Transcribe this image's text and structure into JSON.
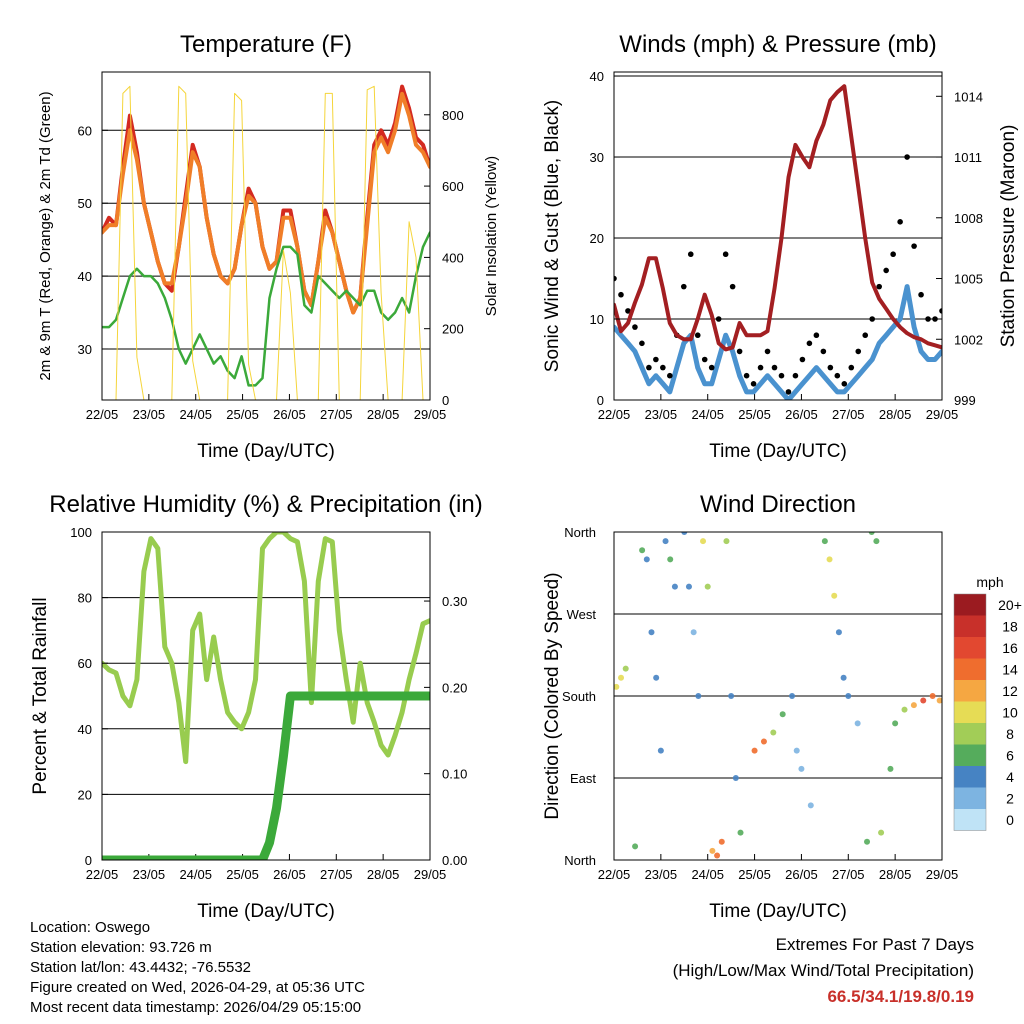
{
  "chart_data": [
    {
      "type": "line",
      "title": "Temperature (F)",
      "xlabel": "Time (Day/UTC)",
      "ylabel": "2m & 9m T (Red, Orange) & 2m Td (Green)",
      "y2label": "Solar Insolation (Yellow)",
      "x_ticks": [
        "22/05",
        "23/05",
        "24/05",
        "25/05",
        "26/05",
        "27/05",
        "28/05",
        "29/05"
      ],
      "ylim": [
        23,
        68
      ],
      "y_ticks": [
        30,
        40,
        50,
        60
      ],
      "y2lim": [
        0,
        920
      ],
      "y2_ticks": [
        0,
        200,
        400,
        600,
        800
      ],
      "series": [
        {
          "name": "2m T",
          "color": "#d42a20",
          "values": [
            46,
            48,
            47,
            55,
            62,
            57,
            50,
            46,
            42,
            39,
            38,
            44,
            51,
            58,
            55,
            48,
            43,
            40,
            39,
            41,
            47,
            52,
            50,
            44,
            41,
            42,
            49,
            49,
            44,
            38,
            36,
            42,
            49,
            46,
            42,
            38,
            35,
            37,
            48,
            58,
            60,
            58,
            61,
            66,
            63,
            59,
            58,
            55
          ]
        },
        {
          "name": "9m T",
          "color": "#f07e28",
          "values": [
            46,
            47,
            47,
            54,
            60,
            56,
            50,
            46,
            42,
            39,
            39,
            44,
            50,
            57,
            55,
            48,
            43,
            40,
            39,
            41,
            47,
            51,
            50,
            44,
            41,
            42,
            48,
            48,
            44,
            38,
            36,
            42,
            48,
            46,
            42,
            38,
            35,
            37,
            47,
            57,
            59,
            57,
            60,
            65,
            62,
            58,
            57,
            55
          ]
        },
        {
          "name": "2m Td",
          "color": "#3ba93a",
          "values": [
            33,
            33,
            34,
            37,
            40,
            41,
            40,
            40,
            39,
            37,
            34,
            30,
            28,
            30,
            32,
            30,
            28,
            29,
            27,
            26,
            29,
            25,
            25,
            26,
            37,
            41,
            44,
            44,
            43,
            36,
            35,
            40,
            39,
            38,
            37,
            38,
            37,
            36,
            38,
            38,
            35,
            34,
            35,
            37,
            35,
            40,
            44,
            46
          ]
        },
        {
          "name": "Solar insolation",
          "color": "#f5d53a",
          "values": [
            0,
            0,
            0,
            860,
            880,
            120,
            0,
            0,
            0,
            0,
            0,
            880,
            860,
            110,
            0,
            0,
            0,
            0,
            0,
            860,
            840,
            100,
            0,
            0,
            0,
            0,
            420,
            300,
            0,
            0,
            0,
            0,
            860,
            860,
            0,
            0,
            0,
            0,
            870,
            880,
            300,
            0,
            0,
            0,
            500,
            400,
            0,
            0
          ]
        }
      ]
    },
    {
      "type": "line",
      "title": "Winds (mph) & Pressure (mb)",
      "xlabel": "Time (Day/UTC)",
      "ylabel": "Sonic Wind & Gust (Blue, Black)",
      "y2label": "Station Pressure (Maroon)",
      "x_ticks": [
        "22/05",
        "23/05",
        "24/05",
        "25/05",
        "26/05",
        "27/05",
        "28/05",
        "29/05"
      ],
      "ylim": [
        0,
        40.5
      ],
      "y_ticks": [
        0,
        10,
        20,
        30,
        40
      ],
      "y2lim": [
        999,
        1015.2
      ],
      "y2_ticks": [
        999,
        1002,
        1005,
        1008,
        1011,
        1014
      ],
      "series": [
        {
          "name": "Wind",
          "color": "#4a92cf",
          "values": [
            9,
            8,
            7,
            6,
            4,
            2,
            3,
            2,
            1,
            4,
            7,
            8,
            4,
            2,
            2,
            5,
            8,
            6,
            3,
            1,
            1,
            2,
            3,
            2,
            1,
            0,
            1,
            2,
            3,
            4,
            3,
            2,
            1,
            1,
            2,
            3,
            4,
            5,
            7,
            8,
            9,
            10,
            14,
            9,
            6,
            5,
            5,
            6
          ]
        },
        {
          "name": "Gust",
          "color": "#000000",
          "values": [
            15,
            13,
            11,
            9,
            7,
            4,
            5,
            4,
            3,
            8,
            14,
            18,
            8,
            5,
            4,
            10,
            18,
            14,
            6,
            3,
            2,
            4,
            6,
            4,
            3,
            1,
            3,
            5,
            7,
            8,
            6,
            4,
            3,
            2,
            4,
            6,
            8,
            10,
            14,
            16,
            18,
            22,
            30,
            19,
            13,
            10,
            10,
            11
          ]
        },
        {
          "name": "Pressure",
          "color": "#a31f22",
          "values": [
            1003.7,
            1002.4,
            1002.8,
            1003.8,
            1004.7,
            1006.0,
            1006.0,
            1004.5,
            1002.8,
            1002.2,
            1002.0,
            1002.0,
            1003.0,
            1004.2,
            1003.2,
            1001.8,
            1001.5,
            1001.6,
            1002.8,
            1002.2,
            1002.2,
            1002.2,
            1002.4,
            1004.5,
            1007.0,
            1010.0,
            1011.6,
            1011.0,
            1010.5,
            1011.8,
            1012.6,
            1013.8,
            1014.2,
            1014.5,
            1012.0,
            1009.5,
            1007.0,
            1004.8,
            1004.0,
            1003.5,
            1003.0,
            1002.6,
            1002.3,
            1002.1,
            1002.0,
            1001.8,
            1001.7,
            1001.6
          ]
        }
      ]
    },
    {
      "type": "line",
      "title": "Relative Humidity (%) & Precipitation (in)",
      "xlabel": "Time (Day/UTC)",
      "ylabel": "Percent & Total Rainfall",
      "x_ticks": [
        "22/05",
        "23/05",
        "24/05",
        "25/05",
        "26/05",
        "27/05",
        "28/05",
        "29/05"
      ],
      "ylim": [
        0,
        100
      ],
      "y_ticks": [
        0,
        20,
        40,
        60,
        80,
        100
      ],
      "y2lim": [
        0,
        0.38
      ],
      "y2_ticks": [
        "0.00",
        "0.10",
        "0.20",
        "0.30"
      ],
      "series": [
        {
          "name": "Relative humidity",
          "color": "#98cc4f",
          "values": [
            60,
            58,
            57,
            50,
            47,
            55,
            88,
            98,
            95,
            65,
            60,
            48,
            30,
            70,
            75,
            55,
            68,
            55,
            45,
            42,
            40,
            45,
            55,
            95,
            98,
            100,
            100,
            98,
            97,
            85,
            48,
            85,
            98,
            97,
            70,
            55,
            42,
            60,
            48,
            42,
            35,
            32,
            38,
            45,
            55,
            63,
            72,
            73
          ]
        },
        {
          "name": "Total rainfall",
          "color": "#3ba93a",
          "values": [
            0,
            0,
            0,
            0,
            0,
            0,
            0,
            0,
            0,
            0,
            0,
            0,
            0,
            0,
            0,
            0,
            0,
            0,
            0,
            0,
            0,
            0,
            0,
            0,
            0.02,
            0.06,
            0.12,
            0.19,
            0.19,
            0.19,
            0.19,
            0.19,
            0.19,
            0.19,
            0.19,
            0.19,
            0.19,
            0.19,
            0.19,
            0.19,
            0.19,
            0.19,
            0.19,
            0.19,
            0.19,
            0.19,
            0.19,
            0.19
          ]
        }
      ]
    },
    {
      "type": "scatter",
      "title": "Wind Direction",
      "xlabel": "Time (Day/UTC)",
      "ylabel": "Direction (Colored By Speed)",
      "x_ticks": [
        "22/05",
        "23/05",
        "24/05",
        "25/05",
        "26/05",
        "27/05",
        "28/05",
        "29/05"
      ],
      "y_labels": [
        "North",
        "East",
        "South",
        "West",
        "North"
      ],
      "y_values": [
        0,
        90,
        180,
        270,
        360
      ],
      "legend_title": "mph",
      "legend_labels": [
        "20+",
        "18",
        "16",
        "14",
        "12",
        "10",
        "8",
        "6",
        "4",
        "2",
        "0"
      ],
      "legend_colors": [
        "#9b1b20",
        "#c8302a",
        "#e24830",
        "#ef6d2e",
        "#f5a742",
        "#e6dc55",
        "#a2cd57",
        "#55ac5c",
        "#4683c3",
        "#7db4e1",
        "#bfe3f6"
      ],
      "values": [
        [
          0.05,
          190,
          9
        ],
        [
          0.15,
          200,
          10
        ],
        [
          0.25,
          210,
          8
        ],
        [
          0.45,
          15,
          6
        ],
        [
          0.6,
          340,
          5
        ],
        [
          0.7,
          330,
          4
        ],
        [
          0.8,
          250,
          3
        ],
        [
          0.9,
          200,
          3
        ],
        [
          1.0,
          120,
          3
        ],
        [
          1.1,
          350,
          4
        ],
        [
          1.2,
          330,
          5
        ],
        [
          1.3,
          300,
          4
        ],
        [
          1.5,
          360,
          4
        ],
        [
          1.6,
          300,
          3
        ],
        [
          1.7,
          250,
          2
        ],
        [
          1.8,
          180,
          3
        ],
        [
          1.9,
          350,
          9
        ],
        [
          2.0,
          300,
          7
        ],
        [
          2.1,
          10,
          11
        ],
        [
          2.2,
          5,
          14
        ],
        [
          2.3,
          20,
          13
        ],
        [
          2.4,
          350,
          7
        ],
        [
          2.5,
          180,
          3
        ],
        [
          2.6,
          90,
          3
        ],
        [
          2.7,
          30,
          5
        ],
        [
          3.0,
          120,
          13
        ],
        [
          3.2,
          130,
          14
        ],
        [
          3.4,
          140,
          8
        ],
        [
          3.6,
          160,
          6
        ],
        [
          3.8,
          180,
          3
        ],
        [
          3.9,
          120,
          1
        ],
        [
          4.0,
          100,
          1
        ],
        [
          4.2,
          60,
          2
        ],
        [
          4.5,
          350,
          6
        ],
        [
          4.6,
          330,
          9
        ],
        [
          4.7,
          290,
          10
        ],
        [
          4.8,
          250,
          3
        ],
        [
          4.9,
          200,
          4
        ],
        [
          5.0,
          180,
          3
        ],
        [
          5.2,
          150,
          2
        ],
        [
          5.4,
          20,
          5
        ],
        [
          5.5,
          360,
          6
        ],
        [
          5.6,
          350,
          6
        ],
        [
          5.7,
          30,
          7
        ],
        [
          5.9,
          100,
          5
        ],
        [
          6.0,
          150,
          6
        ],
        [
          6.2,
          165,
          8
        ],
        [
          6.4,
          170,
          12
        ],
        [
          6.6,
          175,
          15
        ],
        [
          6.8,
          180,
          13
        ],
        [
          6.95,
          175,
          12
        ]
      ]
    }
  ],
  "footer": {
    "location": "Location: Oswego",
    "elevation": "Station elevation: 93.726 m",
    "latlon": "Station lat/lon: 43.4432; -76.5532",
    "created": "Figure created on Wed, 2026-04-29, at 05:36 UTC",
    "recent": "Most recent data timestamp: 2026/04/29 05:15:00"
  },
  "extremes": {
    "title": "Extremes For Past 7 Days",
    "subtitle": "(High/Low/Max Wind/Total Precipitation)",
    "values": "66.5/34.1/19.8/0.19"
  }
}
